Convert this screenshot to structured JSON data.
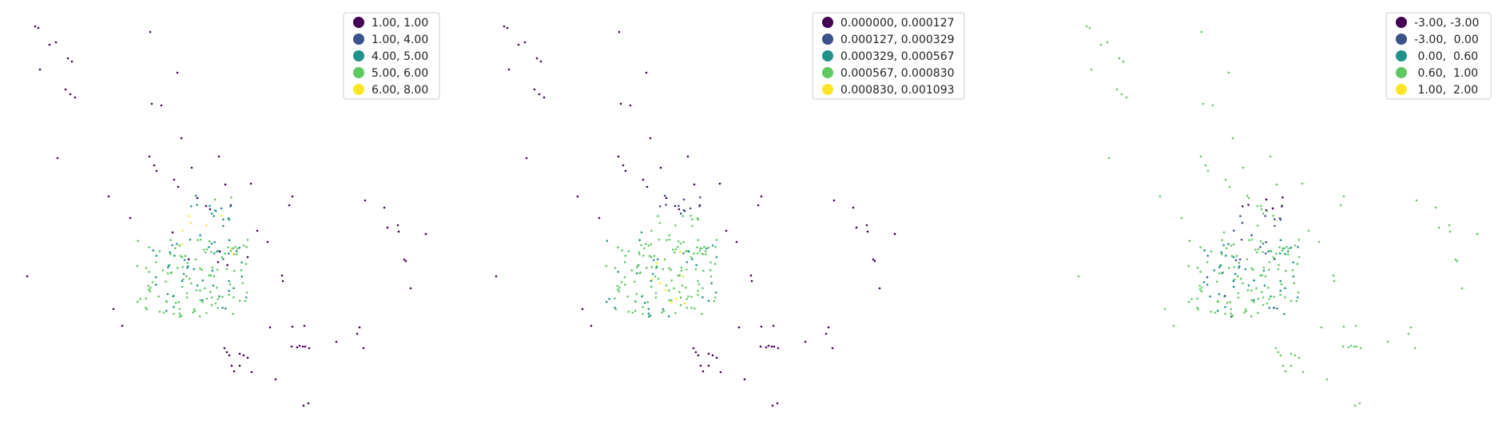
{
  "chart_data": [
    {
      "type": "scatter",
      "title": "",
      "legend": {
        "placement": "top-right",
        "entries": [
          {
            "label": "1.00, 1.00",
            "color": "#440154"
          },
          {
            "label": "1.00, 4.00",
            "color": "#3b528b"
          },
          {
            "label": "4.00, 5.00",
            "color": "#21918c"
          },
          {
            "label": "5.00, 6.00",
            "color": "#5ec962"
          },
          {
            "label": "6.00, 8.00",
            "color": "#fde725"
          }
        ]
      }
    },
    {
      "type": "scatter",
      "title": "",
      "legend": {
        "placement": "top-right",
        "entries": [
          {
            "label": "0.000000, 0.000127",
            "color": "#440154"
          },
          {
            "label": "0.000127, 0.000329",
            "color": "#3b528b"
          },
          {
            "label": "0.000329, 0.000567",
            "color": "#21918c"
          },
          {
            "label": "0.000567, 0.000830",
            "color": "#5ec962"
          },
          {
            "label": "0.000830, 0.001093",
            "color": "#fde725"
          }
        ]
      }
    },
    {
      "type": "scatter",
      "title": "",
      "legend": {
        "placement": "top-right",
        "entries": [
          {
            "label": "-3.00, -3.00",
            "color": "#440154"
          },
          {
            "label": "-3.00,  0.00",
            "color": "#3b528b"
          },
          {
            "label": " 0.00,  0.60",
            "color": "#21918c"
          },
          {
            "label": " 0.60,  1.00",
            "color": "#5ec962"
          },
          {
            "label": " 1.00,  2.00",
            "color": "#fde725"
          }
        ]
      }
    }
  ]
}
